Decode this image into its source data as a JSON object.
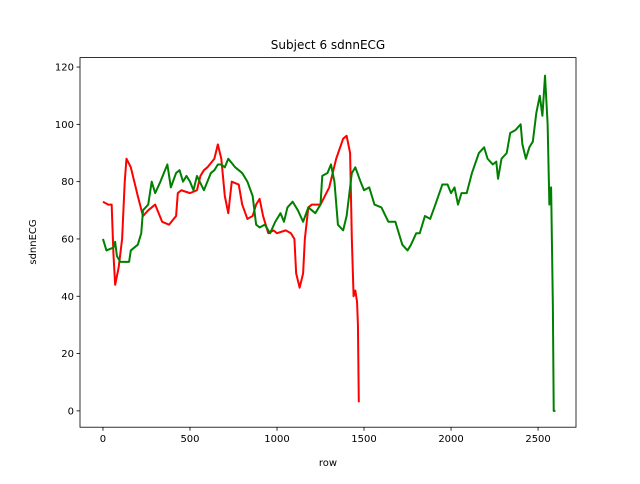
{
  "chart_data": {
    "type": "line",
    "title": "Subject 6 sdnnECG",
    "x_label": "row",
    "y_label": "sdnnECG",
    "xlim": [
      -132,
      2718
    ],
    "ylim": [
      -5.7,
      123.3
    ],
    "xticks": [
      0,
      500,
      1000,
      1500,
      2000,
      2500
    ],
    "yticks": [
      0,
      20,
      40,
      60,
      80,
      100,
      120
    ],
    "series": [
      {
        "color": "#ff0000",
        "x": [
          0,
          30,
          50,
          60,
          70,
          90,
          110,
          125,
          135,
          160,
          180,
          200,
          230,
          260,
          300,
          340,
          380,
          420,
          430,
          450,
          500,
          540,
          560,
          580,
          600,
          640,
          660,
          680,
          700,
          720,
          740,
          780,
          800,
          830,
          860,
          880,
          900,
          920,
          950,
          980,
          1000,
          1050,
          1080,
          1100,
          1110,
          1130,
          1150,
          1160,
          1180,
          1200,
          1250,
          1300,
          1340,
          1380,
          1400,
          1420,
          1430,
          1440,
          1450,
          1460,
          1465,
          1470
        ],
        "values": [
          73,
          72,
          72,
          55,
          44,
          50,
          60,
          80,
          88,
          85,
          80,
          75,
          68,
          70,
          72,
          66,
          65,
          68,
          76,
          77,
          76,
          77,
          82,
          84,
          85,
          88,
          93,
          88,
          75,
          69,
          80,
          79,
          72,
          67,
          68,
          72,
          74,
          68,
          62,
          63,
          62,
          63,
          62,
          60,
          48,
          43,
          48,
          60,
          71,
          72,
          72,
          78,
          88,
          95,
          96,
          90,
          60,
          40,
          42,
          38,
          30,
          3
        ]
      },
      {
        "color": "#008000",
        "x": [
          0,
          20,
          60,
          70,
          80,
          100,
          150,
          160,
          200,
          220,
          230,
          260,
          280,
          300,
          330,
          350,
          370,
          390,
          420,
          440,
          460,
          480,
          500,
          520,
          540,
          580,
          620,
          640,
          660,
          680,
          700,
          720,
          760,
          800,
          830,
          860,
          880,
          900,
          930,
          960,
          990,
          1020,
          1040,
          1060,
          1090,
          1120,
          1150,
          1180,
          1200,
          1220,
          1250,
          1260,
          1290,
          1310,
          1330,
          1350,
          1380,
          1400,
          1430,
          1450,
          1480,
          1500,
          1530,
          1560,
          1600,
          1640,
          1680,
          1720,
          1750,
          1770,
          1800,
          1820,
          1850,
          1880,
          1910,
          1950,
          1980,
          2000,
          2020,
          2040,
          2060,
          2090,
          2120,
          2160,
          2190,
          2210,
          2240,
          2260,
          2270,
          2290,
          2320,
          2340,
          2370,
          2400,
          2410,
          2430,
          2450,
          2470,
          2490,
          2510,
          2525,
          2540,
          2555,
          2565,
          2575,
          2585,
          2590,
          2600
        ],
        "values": [
          60,
          56,
          57,
          59,
          54,
          52,
          52,
          56,
          58,
          62,
          70,
          72,
          80,
          76,
          80,
          83,
          86,
          78,
          83,
          84,
          80,
          82,
          80,
          77,
          82,
          77,
          83,
          84,
          86,
          86,
          85,
          88,
          85,
          83,
          80,
          75,
          65,
          64,
          65,
          62,
          66,
          69,
          66,
          71,
          73,
          70,
          66,
          71,
          70,
          69,
          72,
          82,
          83,
          86,
          80,
          65,
          63,
          68,
          83,
          85,
          80,
          77,
          78,
          72,
          71,
          66,
          66,
          58,
          56,
          58,
          62,
          62,
          68,
          67,
          72,
          79,
          79,
          76,
          78,
          72,
          76,
          76,
          83,
          90,
          92,
          88,
          86,
          87,
          81,
          88,
          90,
          97,
          98,
          100,
          93,
          88,
          92,
          94,
          104,
          110,
          103,
          117,
          100,
          72,
          78,
          37,
          0,
          0
        ]
      }
    ]
  }
}
